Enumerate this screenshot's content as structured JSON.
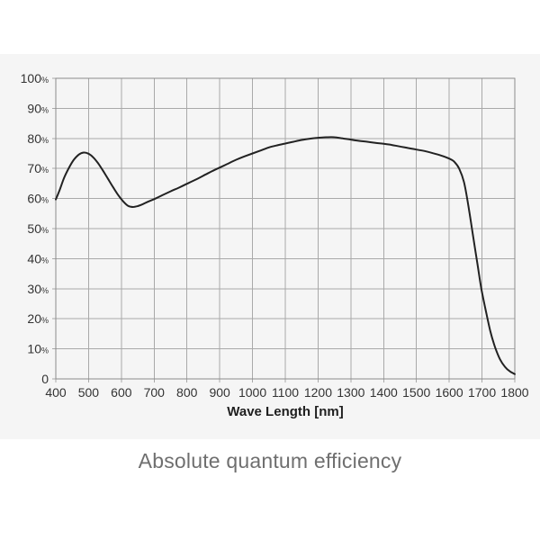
{
  "caption": "Absolute quantum efficiency",
  "colors": {
    "page_bg": "#ffffff",
    "panel_bg": "#f5f5f5",
    "grid": "#a9a9a9",
    "border": "#8c8c8c",
    "curve": "#222222",
    "tick_text": "#333333",
    "axis_title": "#1f1f1f",
    "caption": "#6f6f6f"
  },
  "chart_data": {
    "type": "line",
    "title": "Absolute quantum efficiency",
    "xlabel": "Wave Length [nm]",
    "ylabel": "",
    "xlim": [
      400,
      1800
    ],
    "ylim": [
      0,
      100
    ],
    "grid": true,
    "legend_position": "none",
    "x_ticks": [
      400,
      500,
      600,
      700,
      800,
      900,
      1000,
      1100,
      1200,
      1300,
      1400,
      1500,
      1600,
      1700,
      1800
    ],
    "y_ticks": [
      {
        "value": 100,
        "label": "100",
        "suffix": "%"
      },
      {
        "value": 90,
        "label": "90",
        "suffix": "%"
      },
      {
        "value": 80,
        "label": "80",
        "suffix": "%"
      },
      {
        "value": 70,
        "label": "70",
        "suffix": "%"
      },
      {
        "value": 60,
        "label": "60",
        "suffix": "%"
      },
      {
        "value": 50,
        "label": "50",
        "suffix": "%"
      },
      {
        "value": 40,
        "label": "40",
        "suffix": "%"
      },
      {
        "value": 30,
        "label": "30",
        "suffix": "%"
      },
      {
        "value": 20,
        "label": "20",
        "suffix": "%"
      },
      {
        "value": 10,
        "label": "10",
        "suffix": "%"
      },
      {
        "value": 0,
        "label": "0",
        "suffix": ""
      }
    ],
    "series": [
      {
        "name": "Absolute quantum efficiency",
        "points": [
          [
            400,
            59.7
          ],
          [
            410,
            62.3
          ],
          [
            425,
            66.8
          ],
          [
            440,
            70.2
          ],
          [
            455,
            72.9
          ],
          [
            470,
            74.6
          ],
          [
            485,
            75.3
          ],
          [
            500,
            74.9
          ],
          [
            515,
            73.6
          ],
          [
            530,
            71.6
          ],
          [
            545,
            69.1
          ],
          [
            560,
            66.4
          ],
          [
            575,
            63.7
          ],
          [
            590,
            61.2
          ],
          [
            605,
            59.1
          ],
          [
            620,
            57.6
          ],
          [
            635,
            57.2
          ],
          [
            650,
            57.5
          ],
          [
            665,
            58.1
          ],
          [
            680,
            58.9
          ],
          [
            700,
            59.8
          ],
          [
            725,
            61.1
          ],
          [
            750,
            62.4
          ],
          [
            775,
            63.6
          ],
          [
            800,
            64.9
          ],
          [
            825,
            66.2
          ],
          [
            850,
            67.6
          ],
          [
            875,
            69.0
          ],
          [
            900,
            70.3
          ],
          [
            925,
            71.6
          ],
          [
            950,
            72.9
          ],
          [
            975,
            74.0
          ],
          [
            1000,
            75.0
          ],
          [
            1025,
            76.0
          ],
          [
            1050,
            77.0
          ],
          [
            1075,
            77.7
          ],
          [
            1100,
            78.3
          ],
          [
            1125,
            78.9
          ],
          [
            1150,
            79.5
          ],
          [
            1175,
            79.9
          ],
          [
            1200,
            80.2
          ],
          [
            1225,
            80.4
          ],
          [
            1250,
            80.4
          ],
          [
            1275,
            80.0
          ],
          [
            1300,
            79.6
          ],
          [
            1325,
            79.2
          ],
          [
            1350,
            78.9
          ],
          [
            1375,
            78.5
          ],
          [
            1400,
            78.2
          ],
          [
            1425,
            77.8
          ],
          [
            1450,
            77.3
          ],
          [
            1475,
            76.8
          ],
          [
            1500,
            76.3
          ],
          [
            1525,
            75.8
          ],
          [
            1550,
            75.1
          ],
          [
            1575,
            74.3
          ],
          [
            1600,
            73.3
          ],
          [
            1615,
            72.3
          ],
          [
            1630,
            70.0
          ],
          [
            1645,
            65.5
          ],
          [
            1660,
            56.5
          ],
          [
            1672,
            48.0
          ],
          [
            1685,
            39.0
          ],
          [
            1698,
            30.0
          ],
          [
            1710,
            23.5
          ],
          [
            1725,
            16.0
          ],
          [
            1740,
            10.5
          ],
          [
            1755,
            6.5
          ],
          [
            1770,
            4.0
          ],
          [
            1785,
            2.5
          ],
          [
            1800,
            1.6
          ]
        ]
      }
    ]
  }
}
